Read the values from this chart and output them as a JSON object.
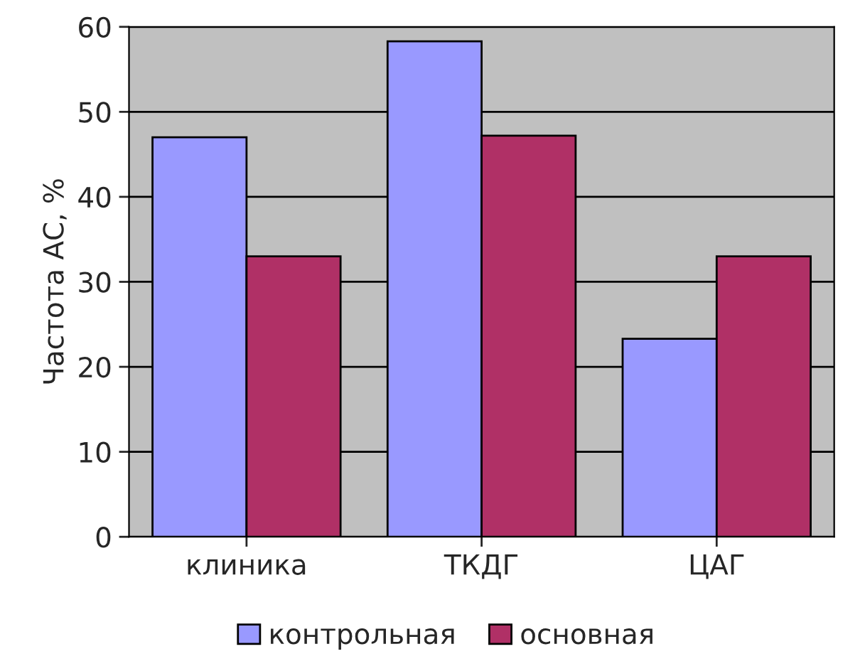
{
  "chart_data": {
    "type": "bar",
    "ylabel": "Частота АС, %",
    "categories": [
      "клиника",
      "ТКДГ",
      "ЦАГ"
    ],
    "series": [
      {
        "name": "контрольная",
        "color": "#9999ff",
        "values": [
          47,
          58.3,
          23.3
        ]
      },
      {
        "name": "основная",
        "color": "#b03066",
        "values": [
          33,
          47.2,
          33
        ]
      }
    ],
    "ylim": [
      0,
      60
    ],
    "yticks": [
      0,
      10,
      20,
      30,
      40,
      50,
      60
    ],
    "grid": "y",
    "legend": "bottom"
  }
}
